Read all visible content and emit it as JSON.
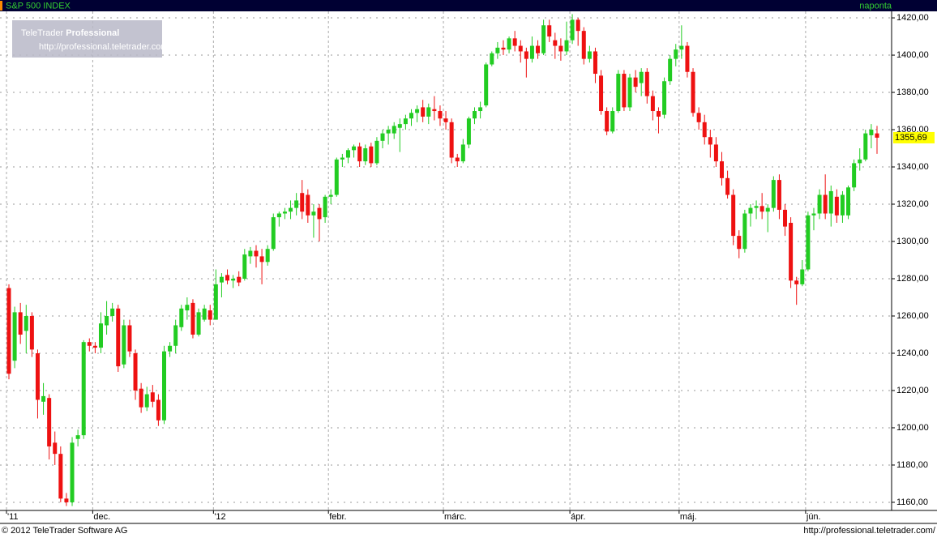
{
  "header": {
    "symbol": "S&P 500 INDEX",
    "interval": "naponta"
  },
  "watermark": {
    "brand": "TeleTrader",
    "product": "Professional",
    "url": "http://professional.teletrader.com/"
  },
  "footer": {
    "copyright": "© 2012 TeleTrader Software AG",
    "url": "http://professional.teletrader.com/"
  },
  "chart_data": {
    "type": "candlestick",
    "up_color": "#22cc22",
    "down_color": "#ee1111",
    "grid": true,
    "ylim": [
      1156.5,
      1423.5
    ],
    "yticks": [
      {
        "value": 1160,
        "label": "1160,00"
      },
      {
        "value": 1180,
        "label": "1180,00"
      },
      {
        "value": 1200,
        "label": "1200,00"
      },
      {
        "value": 1220,
        "label": "1220,00"
      },
      {
        "value": 1240,
        "label": "1240,00"
      },
      {
        "value": 1260,
        "label": "1260,00"
      },
      {
        "value": 1280,
        "label": "1280,00"
      },
      {
        "value": 1300,
        "label": "1300,00"
      },
      {
        "value": 1320,
        "label": "1320,00"
      },
      {
        "value": 1340,
        "label": "1340,00"
      },
      {
        "value": 1360,
        "label": "1360,00"
      },
      {
        "value": 1380,
        "label": "1380,00"
      },
      {
        "value": 1400,
        "label": "1400,00"
      },
      {
        "value": 1420,
        "label": "1420,00"
      }
    ],
    "last_price": {
      "value": 1355.69,
      "label": "1355,69"
    },
    "categories": [
      "'11",
      null,
      null,
      null,
      null,
      null,
      null,
      null,
      null,
      null,
      null,
      null,
      null,
      null,
      null,
      "dec.",
      null,
      null,
      null,
      null,
      null,
      null,
      null,
      null,
      null,
      null,
      null,
      null,
      null,
      null,
      null,
      null,
      null,
      null,
      null,
      null,
      "'12",
      null,
      null,
      null,
      null,
      null,
      null,
      null,
      null,
      null,
      null,
      null,
      null,
      null,
      null,
      null,
      null,
      null,
      null,
      null,
      "febr.",
      null,
      null,
      null,
      null,
      null,
      null,
      null,
      null,
      null,
      null,
      null,
      null,
      null,
      null,
      null,
      null,
      null,
      null,
      null,
      "márc.",
      null,
      null,
      null,
      null,
      null,
      null,
      null,
      null,
      null,
      null,
      null,
      null,
      null,
      null,
      null,
      null,
      null,
      null,
      null,
      null,
      null,
      "ápr.",
      null,
      null,
      null,
      null,
      null,
      null,
      null,
      null,
      null,
      null,
      null,
      null,
      null,
      null,
      null,
      null,
      null,
      null,
      "máj.",
      null,
      null,
      null,
      null,
      null,
      null,
      null,
      null,
      null,
      null,
      null,
      null,
      null,
      null,
      null,
      null,
      null,
      null,
      null,
      null,
      null,
      "jún.",
      null,
      null,
      null,
      null,
      null,
      null,
      null,
      null,
      null,
      null,
      null,
      null
    ],
    "ohlc": [
      [
        1275,
        1277,
        1226,
        1229
      ],
      [
        1236,
        1265,
        1232,
        1262
      ],
      [
        1262,
        1267,
        1245,
        1250
      ],
      [
        1252,
        1266,
        1240,
        1260
      ],
      [
        1260,
        1262,
        1238,
        1242
      ],
      [
        1240,
        1242,
        1205,
        1215
      ],
      [
        1214,
        1224,
        1207,
        1217
      ],
      [
        1216,
        1218,
        1183,
        1190
      ],
      [
        1192,
        1198,
        1180,
        1186
      ],
      [
        1186,
        1190,
        1160,
        1162
      ],
      [
        1162,
        1165,
        1158,
        1160
      ],
      [
        1160,
        1195,
        1158,
        1192
      ],
      [
        1194,
        1199,
        1190,
        1196
      ],
      [
        1196,
        1247,
        1194,
        1246
      ],
      [
        1246,
        1248,
        1241,
        1244
      ],
      [
        1244,
        1246,
        1240,
        1243
      ],
      [
        1243,
        1262,
        1240,
        1256
      ],
      [
        1255,
        1268,
        1250,
        1260
      ],
      [
        1260,
        1267,
        1257,
        1264
      ],
      [
        1264,
        1266,
        1230,
        1233
      ],
      [
        1234,
        1258,
        1232,
        1255
      ],
      [
        1255,
        1258,
        1238,
        1241
      ],
      [
        1240,
        1242,
        1215,
        1220
      ],
      [
        1221,
        1224,
        1208,
        1211
      ],
      [
        1211,
        1222,
        1209,
        1218
      ],
      [
        1219,
        1223,
        1211,
        1214
      ],
      [
        1215,
        1218,
        1201,
        1204
      ],
      [
        1204,
        1244,
        1202,
        1241
      ],
      [
        1241,
        1246,
        1238,
        1244
      ],
      [
        1244,
        1258,
        1240,
        1255
      ],
      [
        1254,
        1266,
        1252,
        1264
      ],
      [
        1263,
        1270,
        1258,
        1266
      ],
      [
        1267,
        1269,
        1248,
        1250
      ],
      [
        1250,
        1264,
        1249,
        1262
      ],
      [
        1258,
        1266,
        1257,
        1264
      ],
      [
        1263,
        1266,
        1255,
        1258
      ],
      [
        1258,
        1285,
        1258,
        1277
      ],
      [
        1278,
        1283,
        1270,
        1281
      ],
      [
        1282,
        1285,
        1277,
        1279
      ],
      [
        1279,
        1282,
        1275,
        1280
      ],
      [
        1281,
        1284,
        1276,
        1278
      ],
      [
        1280,
        1296,
        1279,
        1293
      ],
      [
        1292,
        1297,
        1288,
        1295
      ],
      [
        1295,
        1298,
        1286,
        1292
      ],
      [
        1292,
        1296,
        1277,
        1289
      ],
      [
        1289,
        1298,
        1287,
        1296
      ],
      [
        1296,
        1315,
        1295,
        1313
      ],
      [
        1313,
        1316,
        1308,
        1315
      ],
      [
        1315,
        1318,
        1312,
        1316
      ],
      [
        1316,
        1322,
        1312,
        1318
      ],
      [
        1318,
        1326,
        1314,
        1322
      ],
      [
        1326,
        1333,
        1312,
        1316
      ],
      [
        1325,
        1328,
        1310,
        1314
      ],
      [
        1314,
        1320,
        1302,
        1316
      ],
      [
        1318,
        1320,
        1300,
        1312
      ],
      [
        1313,
        1325,
        1310,
        1324
      ],
      [
        1324,
        1328,
        1320,
        1325
      ],
      [
        1325,
        1345,
        1324,
        1344
      ],
      [
        1344,
        1347,
        1340,
        1345
      ],
      [
        1345,
        1350,
        1342,
        1349
      ],
      [
        1349,
        1352,
        1345,
        1351
      ],
      [
        1351,
        1353,
        1340,
        1343
      ],
      [
        1343,
        1352,
        1341,
        1350
      ],
      [
        1351,
        1353,
        1340,
        1342
      ],
      [
        1342,
        1356,
        1341,
        1354
      ],
      [
        1354,
        1360,
        1350,
        1358
      ],
      [
        1358,
        1362,
        1352,
        1360
      ],
      [
        1358,
        1364,
        1355,
        1362
      ],
      [
        1361,
        1366,
        1348,
        1363
      ],
      [
        1363,
        1368,
        1360,
        1366
      ],
      [
        1366,
        1371,
        1362,
        1369
      ],
      [
        1369,
        1373,
        1364,
        1371
      ],
      [
        1372,
        1376,
        1364,
        1367
      ],
      [
        1367,
        1374,
        1363,
        1372
      ],
      [
        1371,
        1378,
        1365,
        1370
      ],
      [
        1370,
        1373,
        1362,
        1366
      ],
      [
        1366,
        1370,
        1360,
        1364
      ],
      [
        1364,
        1366,
        1342,
        1345
      ],
      [
        1345,
        1347,
        1340,
        1343
      ],
      [
        1343,
        1355,
        1342,
        1352
      ],
      [
        1352,
        1367,
        1350,
        1366
      ],
      [
        1366,
        1372,
        1363,
        1370
      ],
      [
        1370,
        1375,
        1366,
        1372
      ],
      [
        1373,
        1396,
        1372,
        1395
      ],
      [
        1395,
        1402,
        1394,
        1401
      ],
      [
        1401,
        1407,
        1398,
        1404
      ],
      [
        1404,
        1408,
        1400,
        1403
      ],
      [
        1403,
        1410,
        1401,
        1409
      ],
      [
        1409,
        1413,
        1402,
        1405
      ],
      [
        1405,
        1408,
        1396,
        1402
      ],
      [
        1402,
        1404,
        1388,
        1398
      ],
      [
        1398,
        1410,
        1396,
        1405
      ],
      [
        1405,
        1408,
        1398,
        1401
      ],
      [
        1401,
        1419,
        1400,
        1416
      ],
      [
        1416,
        1419,
        1407,
        1410
      ],
      [
        1408,
        1412,
        1398,
        1405
      ],
      [
        1405,
        1409,
        1397,
        1402
      ],
      [
        1402,
        1418,
        1400,
        1408
      ],
      [
        1408,
        1422,
        1406,
        1419
      ],
      [
        1419,
        1420,
        1405,
        1413
      ],
      [
        1413,
        1415,
        1395,
        1398
      ],
      [
        1398,
        1405,
        1396,
        1402
      ],
      [
        1402,
        1404,
        1385,
        1390
      ],
      [
        1389,
        1392,
        1368,
        1370
      ],
      [
        1370,
        1372,
        1357,
        1359
      ],
      [
        1359,
        1372,
        1358,
        1370
      ],
      [
        1370,
        1392,
        1369,
        1390
      ],
      [
        1390,
        1392,
        1370,
        1372
      ],
      [
        1372,
        1390,
        1370,
        1388
      ],
      [
        1388,
        1392,
        1380,
        1383
      ],
      [
        1385,
        1393,
        1378,
        1391
      ],
      [
        1391,
        1393,
        1374,
        1378
      ],
      [
        1378,
        1381,
        1365,
        1370
      ],
      [
        1370,
        1372,
        1358,
        1367
      ],
      [
        1368,
        1388,
        1366,
        1386
      ],
      [
        1386,
        1400,
        1384,
        1398
      ],
      [
        1398,
        1406,
        1394,
        1403
      ],
      [
        1403,
        1416,
        1398,
        1405
      ],
      [
        1405,
        1407,
        1388,
        1391
      ],
      [
        1391,
        1393,
        1367,
        1369
      ],
      [
        1369,
        1372,
        1360,
        1364
      ],
      [
        1364,
        1368,
        1352,
        1356
      ],
      [
        1356,
        1360,
        1345,
        1352
      ],
      [
        1352,
        1356,
        1340,
        1343
      ],
      [
        1343,
        1348,
        1330,
        1334
      ],
      [
        1334,
        1338,
        1323,
        1325
      ],
      [
        1325,
        1328,
        1298,
        1303
      ],
      [
        1303,
        1306,
        1291,
        1296
      ],
      [
        1296,
        1317,
        1294,
        1315
      ],
      [
        1315,
        1320,
        1308,
        1318
      ],
      [
        1318,
        1322,
        1312,
        1319
      ],
      [
        1319,
        1326,
        1312,
        1316
      ],
      [
        1316,
        1320,
        1305,
        1318
      ],
      [
        1318,
        1335,
        1316,
        1333
      ],
      [
        1333,
        1336,
        1312,
        1317
      ],
      [
        1317,
        1320,
        1303,
        1308
      ],
      [
        1310,
        1313,
        1275,
        1279
      ],
      [
        1279,
        1281,
        1266,
        1277
      ],
      [
        1277,
        1290,
        1276,
        1285
      ],
      [
        1285,
        1316,
        1284,
        1314
      ],
      [
        1314,
        1318,
        1306,
        1315
      ],
      [
        1315,
        1328,
        1312,
        1325
      ],
      [
        1325,
        1336,
        1312,
        1315
      ],
      [
        1315,
        1330,
        1308,
        1327
      ],
      [
        1324,
        1328,
        1310,
        1314
      ],
      [
        1314,
        1327,
        1310,
        1325
      ],
      [
        1314,
        1330,
        1312,
        1329
      ],
      [
        1329,
        1344,
        1327,
        1342
      ],
      [
        1342,
        1350,
        1338,
        1344
      ],
      [
        1344,
        1360,
        1343,
        1358
      ],
      [
        1357,
        1363,
        1350,
        1360
      ],
      [
        1358,
        1362,
        1347,
        1355.69
      ]
    ]
  }
}
